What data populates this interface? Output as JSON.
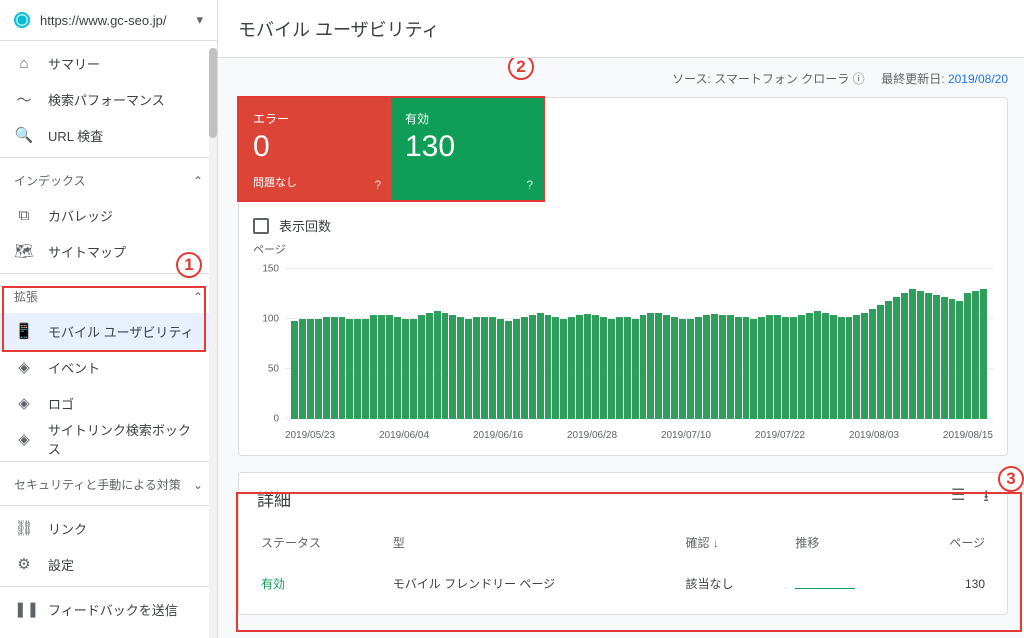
{
  "property_url": "https://www.gc-seo.jp/",
  "page_title": "モバイル ユーザビリティ",
  "meta": {
    "source_label": "ソース:",
    "source_value": "スマートフォン クローラ",
    "updated_label": "最終更新日:",
    "updated_value": "2019/08/20"
  },
  "nav": {
    "items": [
      {
        "icon": "⌂",
        "label": "サマリー"
      },
      {
        "icon": "〜",
        "label": "検索パフォーマンス"
      },
      {
        "icon": "🔍",
        "label": "URL 検査"
      }
    ],
    "index_section": "インデックス",
    "index_items": [
      {
        "icon": "⧉",
        "label": "カバレッジ"
      },
      {
        "icon": "🗺",
        "label": "サイトマップ"
      }
    ],
    "enhance_section": "拡張",
    "enhance_items": [
      {
        "icon": "📱",
        "label": "モバイル ユーザビリティ",
        "active": true
      },
      {
        "icon": "◈",
        "label": "イベント"
      },
      {
        "icon": "◈",
        "label": "ロゴ"
      },
      {
        "icon": "◈",
        "label": "サイトリンク検索ボックス"
      }
    ],
    "security_section": "セキュリティと手動による対策",
    "bottom": [
      {
        "icon": "⛓",
        "label": "リンク"
      },
      {
        "icon": "⚙",
        "label": "設定"
      }
    ],
    "feedback": {
      "icon": "❚❚",
      "label": "フィードバックを送信"
    }
  },
  "tiles": {
    "error": {
      "label": "エラー",
      "value": "0",
      "sub": "問題なし"
    },
    "valid": {
      "label": "有効",
      "value": "130"
    }
  },
  "impressions_label": "表示回数",
  "chart": {
    "type": "bar",
    "y_title": "ページ",
    "ylim": [
      0,
      150
    ],
    "y_ticks": [
      0,
      50,
      100,
      150
    ],
    "x_labels": [
      "2019/05/23",
      "2019/06/04",
      "2019/06/16",
      "2019/06/28",
      "2019/07/10",
      "2019/07/22",
      "2019/08/03",
      "2019/08/15"
    ],
    "bar_color": "#2e9e5b",
    "grid_color": "#e8eaed",
    "background_color": "#ffffff",
    "values": [
      98,
      100,
      100,
      100,
      102,
      102,
      102,
      100,
      100,
      100,
      104,
      104,
      104,
      102,
      100,
      100,
      104,
      106,
      108,
      106,
      104,
      102,
      100,
      102,
      102,
      102,
      100,
      98,
      100,
      102,
      104,
      106,
      104,
      102,
      100,
      102,
      104,
      105,
      104,
      102,
      100,
      102,
      102,
      100,
      104,
      106,
      106,
      104,
      102,
      100,
      100,
      102,
      104,
      105,
      104,
      104,
      102,
      102,
      100,
      102,
      104,
      104,
      102,
      102,
      104,
      106,
      108,
      106,
      104,
      102,
      102,
      104,
      106,
      110,
      114,
      118,
      122,
      126,
      130,
      128,
      126,
      124,
      122,
      120,
      118,
      126,
      128,
      130
    ]
  },
  "details": {
    "title": "詳細",
    "columns": {
      "status": "ステータス",
      "type": "型",
      "confirm": "確認 ↓",
      "trend": "推移",
      "pages": "ページ"
    },
    "row": {
      "status": "有効",
      "type": "モバイル フレンドリー ページ",
      "confirm": "該当なし",
      "pages": "130"
    }
  },
  "annotations": {
    "n1": "1",
    "n2": "2",
    "n3": "3"
  }
}
